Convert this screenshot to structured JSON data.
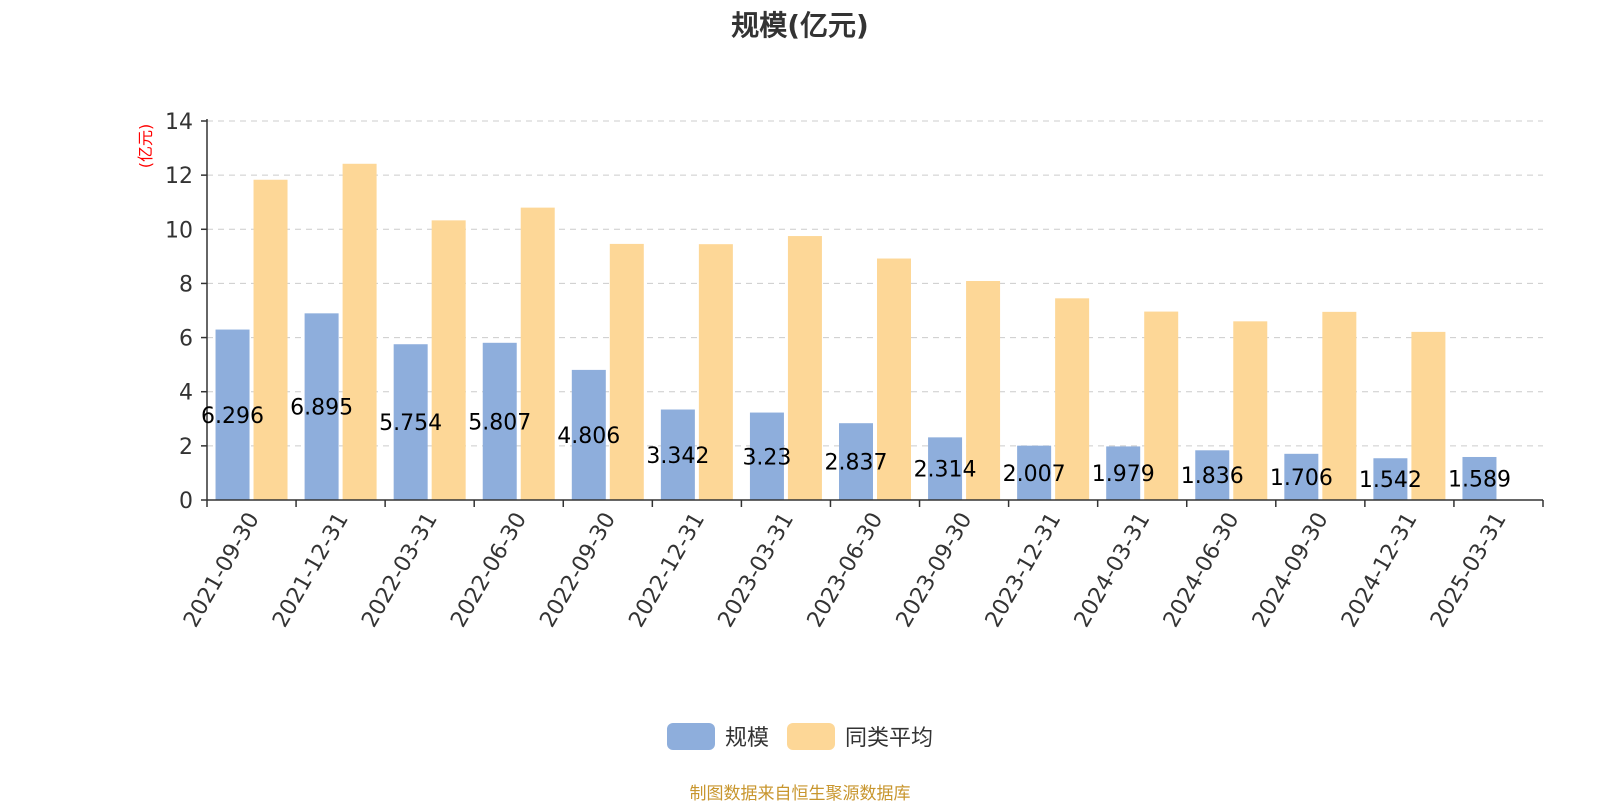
{
  "chart_data": {
    "type": "bar",
    "title": "规模(亿元)",
    "ylabel": "(亿元)",
    "xlabel": "",
    "ylim": [
      0,
      14
    ],
    "yticks": [
      0,
      2,
      4,
      6,
      8,
      10,
      12,
      14
    ],
    "grid": true,
    "legend_position": "bottom",
    "categories": [
      "2021-09-30",
      "2021-12-31",
      "2022-03-31",
      "2022-06-30",
      "2022-09-30",
      "2022-12-31",
      "2023-03-31",
      "2023-06-30",
      "2023-09-30",
      "2023-12-31",
      "2024-03-31",
      "2024-06-30",
      "2024-09-30",
      "2024-12-31",
      "2025-03-31"
    ],
    "series": [
      {
        "name": "规模",
        "color": "#8eaedc",
        "values": [
          6.296,
          6.895,
          5.754,
          5.807,
          4.806,
          3.342,
          3.23,
          2.837,
          2.314,
          2.007,
          1.979,
          1.836,
          1.706,
          1.542,
          1.589
        ],
        "labels": [
          "6.296",
          "6.895",
          "5.754",
          "5.807",
          "4.806",
          "3.342",
          "3.23",
          "2.837",
          "2.314",
          "2.007",
          "1.979",
          "1.836",
          "1.706",
          "1.542",
          "1.589"
        ]
      },
      {
        "name": "同类平均",
        "color": "#fdd797",
        "values": [
          11.83,
          12.42,
          10.33,
          10.8,
          9.46,
          9.45,
          9.75,
          8.92,
          8.09,
          7.45,
          6.96,
          6.6,
          6.95,
          6.21,
          null
        ]
      }
    ]
  },
  "footer": "制图数据来自恒生聚源数据库"
}
